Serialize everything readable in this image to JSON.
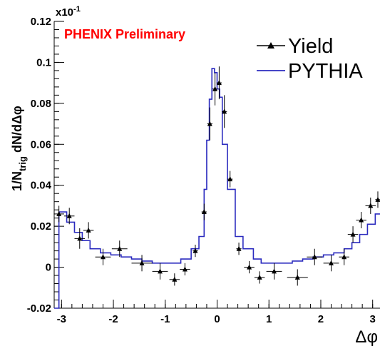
{
  "chart_data": {
    "type": "line",
    "annotation": "PHENIX Preliminary",
    "xlabel": "Δφ",
    "ylabel": {
      "main": "1/N",
      "sub": "trig",
      "tail": " dN/dΔφ"
    },
    "y_exponent": {
      "base": "x10",
      "power": "-1"
    },
    "xlim": [
      -3.14159,
      3.14159
    ],
    "ylim": [
      -0.02,
      0.12
    ],
    "x_ticks": [
      -3,
      -2,
      -1,
      0,
      1,
      2,
      3
    ],
    "x_tick_labels": [
      "-3",
      "-2",
      "-1",
      "0",
      "1",
      "2",
      "3"
    ],
    "y_ticks": [
      -0.02,
      0,
      0.02,
      0.04,
      0.06,
      0.08,
      0.1,
      0.12
    ],
    "y_tick_labels": [
      "-0.02",
      "0",
      "0.02",
      "0.04",
      "0.06",
      "0.08",
      "0.1",
      "0.12"
    ],
    "grid": false,
    "legend_position": "top-right",
    "colors": {
      "yield": "#000000",
      "pythia": "#2b2bbf",
      "annotation": "#ff0000"
    },
    "series": [
      {
        "name": "Yield",
        "kind": "points",
        "x": [
          -3.05,
          -2.85,
          -2.65,
          -2.48,
          -2.2,
          -1.88,
          -1.45,
          -1.1,
          -0.82,
          -0.62,
          -0.42,
          -0.25,
          -0.14,
          -0.04,
          0.04,
          0.14,
          0.25,
          0.42,
          0.62,
          0.82,
          1.1,
          1.55,
          1.88,
          2.2,
          2.45,
          2.62,
          2.78,
          2.96,
          3.1
        ],
        "y": [
          0.026,
          0.025,
          0.014,
          0.018,
          0.005,
          0.009,
          0.002,
          -0.002,
          -0.006,
          -0.001,
          0.008,
          0.027,
          0.07,
          0.087,
          0.09,
          0.076,
          0.043,
          0.009,
          0.0,
          -0.005,
          -0.002,
          -0.005,
          0.005,
          0.002,
          0.005,
          0.016,
          0.023,
          0.03,
          0.033
        ],
        "xerr": [
          0.1,
          0.1,
          0.1,
          0.1,
          0.15,
          0.15,
          0.2,
          0.15,
          0.1,
          0.1,
          0.05,
          0.05,
          0.05,
          0.05,
          0.05,
          0.05,
          0.05,
          0.05,
          0.1,
          0.1,
          0.15,
          0.2,
          0.15,
          0.15,
          0.1,
          0.1,
          0.1,
          0.1,
          0.05
        ],
        "yerr": [
          0.004,
          0.004,
          0.005,
          0.004,
          0.004,
          0.004,
          0.004,
          0.004,
          0.003,
          0.003,
          0.003,
          0.004,
          0.008,
          0.008,
          0.008,
          0.008,
          0.004,
          0.003,
          0.003,
          0.003,
          0.004,
          0.004,
          0.004,
          0.004,
          0.004,
          0.004,
          0.004,
          0.004,
          0.004
        ]
      },
      {
        "name": "PYTHIA",
        "kind": "step",
        "edges": [
          -3.14159,
          -3.05,
          -2.9,
          -2.75,
          -2.6,
          -2.45,
          -2.25,
          -2.05,
          -1.85,
          -1.65,
          -1.45,
          -1.25,
          -1.05,
          -0.85,
          -0.7,
          -0.5,
          -0.35,
          -0.25,
          -0.2,
          -0.15,
          -0.1,
          -0.05,
          0.0,
          0.05,
          0.1,
          0.2,
          0.35,
          0.5,
          0.7,
          0.85,
          1.05,
          1.25,
          1.45,
          1.65,
          1.85,
          2.05,
          2.25,
          2.45,
          2.6,
          2.75,
          2.9,
          3.05,
          3.14159
        ],
        "values": [
          -0.02,
          0.027,
          0.022,
          0.017,
          0.013,
          0.009,
          0.007,
          0.006,
          0.005,
          0.004,
          0.003,
          0.002,
          0.002,
          0.002,
          0.004,
          0.009,
          0.015,
          0.038,
          0.062,
          0.082,
          0.097,
          0.095,
          0.087,
          0.083,
          0.06,
          0.038,
          0.015,
          0.009,
          0.004,
          0.002,
          0.002,
          0.002,
          0.003,
          0.004,
          0.005,
          0.006,
          0.007,
          0.009,
          0.012,
          0.016,
          0.021,
          0.026
        ]
      }
    ]
  }
}
